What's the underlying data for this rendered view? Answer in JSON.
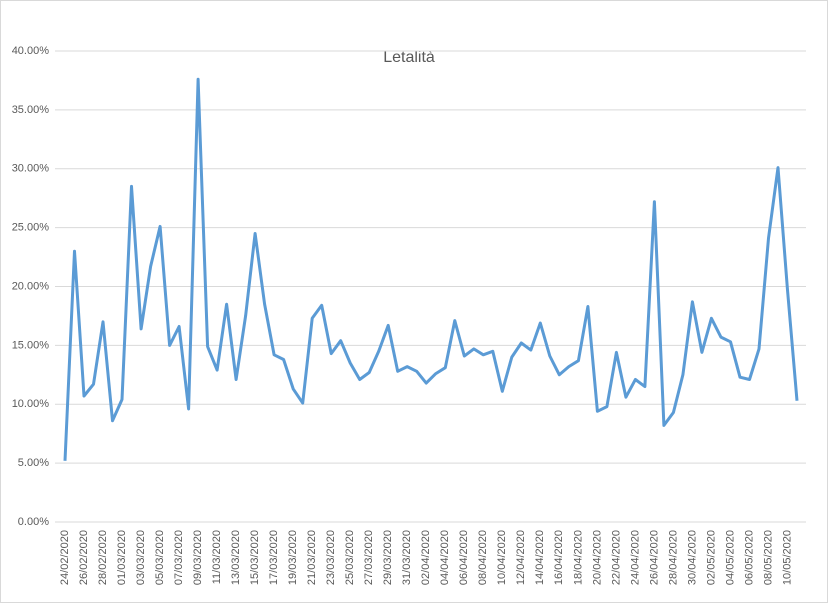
{
  "chart_data": {
    "type": "line",
    "title": "Letalità",
    "categories": [
      "24/02/2020",
      null,
      "26/02/2020",
      null,
      "28/02/2020",
      null,
      "01/03/2020",
      null,
      "03/03/2020",
      null,
      "05/03/2020",
      null,
      "07/03/2020",
      null,
      "09/03/2020",
      null,
      "11/03/2020",
      null,
      "13/03/2020",
      null,
      "15/03/2020",
      null,
      "17/03/2020",
      null,
      "19/03/2020",
      null,
      "21/03/2020",
      null,
      "23/03/2020",
      null,
      "25/03/2020",
      null,
      "27/03/2020",
      null,
      "29/03/2020",
      null,
      "31/03/2020",
      null,
      "02/04/2020",
      null,
      "04/04/2020",
      null,
      "06/04/2020",
      null,
      "08/04/2020",
      null,
      "10/04/2020",
      null,
      "12/04/2020",
      null,
      "14/04/2020",
      null,
      "16/04/2020",
      null,
      "18/04/2020",
      null,
      "20/04/2020",
      null,
      "22/04/2020",
      null,
      "24/04/2020",
      null,
      "26/04/2020",
      null,
      "28/04/2020",
      null,
      "30/04/2020",
      null,
      "02/05/2020",
      null,
      "04/05/2020",
      null,
      "06/05/2020",
      null,
      "08/05/2020",
      null,
      "10/05/2020",
      null
    ],
    "series": [
      {
        "name": "Letalità",
        "color": "#5b9bd5",
        "values": [
          5.2,
          23.0,
          10.7,
          11.7,
          17.0,
          8.6,
          10.4,
          28.5,
          16.4,
          21.7,
          25.1,
          15.0,
          16.6,
          9.6,
          37.6,
          14.9,
          12.9,
          18.5,
          12.1,
          17.5,
          24.5,
          18.5,
          14.2,
          13.8,
          11.3,
          10.1,
          17.3,
          18.4,
          14.3,
          15.4,
          13.5,
          12.1,
          12.7,
          14.5,
          16.7,
          12.8,
          13.2,
          12.8,
          11.8,
          12.6,
          13.1,
          17.1,
          14.1,
          14.7,
          14.2,
          14.5,
          11.1,
          14.0,
          15.2,
          14.6,
          16.9,
          14.1,
          12.5,
          13.2,
          13.7,
          18.3,
          9.4,
          9.8,
          14.4,
          10.6,
          12.1,
          11.5,
          27.2,
          8.2,
          9.3,
          12.5,
          18.7,
          14.4,
          17.3,
          15.7,
          15.3,
          12.3,
          12.1,
          14.7,
          24.1,
          30.1,
          19.7,
          10.3
        ]
      }
    ],
    "ylim": [
      0,
      40
    ],
    "yticks": [
      {
        "value": 0,
        "label": "0.00%"
      },
      {
        "value": 5,
        "label": "5.00%"
      },
      {
        "value": 10,
        "label": "10.00%"
      },
      {
        "value": 15,
        "label": "15.00%"
      },
      {
        "value": 20,
        "label": "20.00%"
      },
      {
        "value": 25,
        "label": "25.00%"
      },
      {
        "value": 30,
        "label": "30.00%"
      },
      {
        "value": 35,
        "label": "35.00%"
      },
      {
        "value": 40,
        "label": "40.00%"
      }
    ],
    "grid": true
  }
}
